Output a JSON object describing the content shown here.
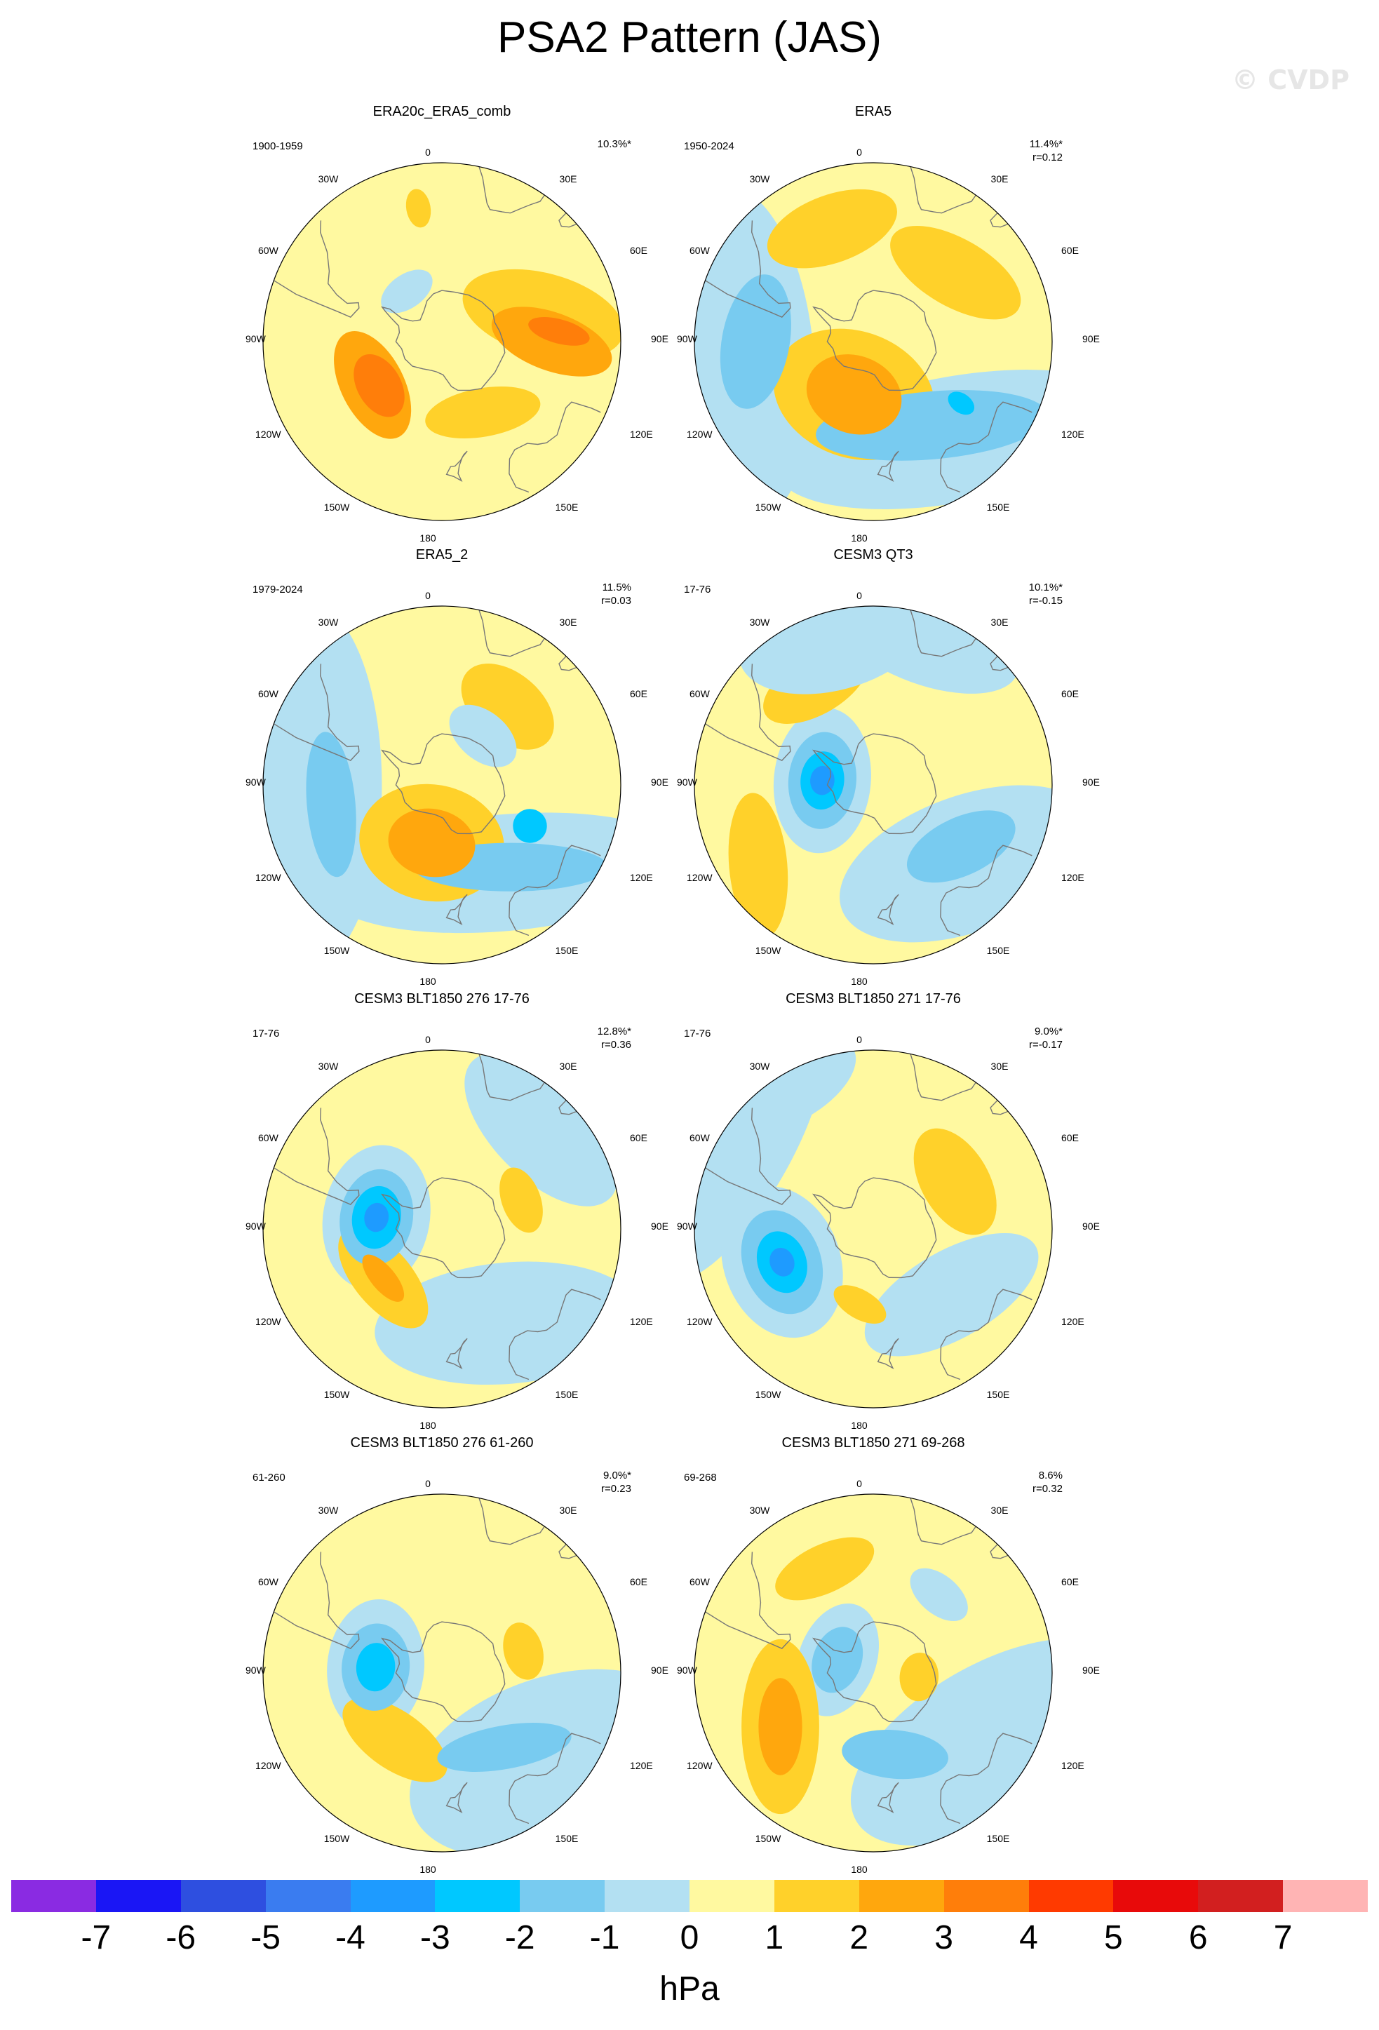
{
  "title": "PSA2 Pattern (JAS)",
  "watermark": "© CVDP",
  "colors": {
    "levels": [
      "#8a2be2",
      "#1a16f5",
      "#2e4fe0",
      "#3a7cf0",
      "#1e9bff",
      "#00c8ff",
      "#78cbf0",
      "#b3e0f2",
      "#fff9a0",
      "#ffd12a",
      "#ffa70d",
      "#ff7e0a",
      "#ff3a00",
      "#e80a0a",
      "#d21f1f",
      "#ffb4b4"
    ],
    "land_outline": "#777777"
  },
  "colorbar": {
    "ticks": [
      "-7",
      "-6",
      "-5",
      "-4",
      "-3",
      "-2",
      "-1",
      "0",
      "1",
      "2",
      "3",
      "4",
      "5",
      "6",
      "7"
    ],
    "units": "hPa"
  },
  "map_labels": {
    "top": "0",
    "bottom": "180",
    "left": "90W",
    "right": "90E",
    "ul1": "30W",
    "ul2": "60W",
    "ur1": "30E",
    "ur2": "60E",
    "ll1": "120W",
    "ll2": "150W",
    "lr1": "120E",
    "lr2": "150E"
  },
  "panels": [
    {
      "title": "ERA20c_ERA5_comb",
      "period": "1900-1959",
      "pct": "10.3%*",
      "r": "",
      "blobs": [
        {
          "lon": 75,
          "lat": -49,
          "rx": 34,
          "ry": 17,
          "rot": -60,
          "v": 1
        },
        {
          "lon": 90,
          "lat": -47,
          "rx": 26,
          "ry": 12,
          "rot": -70,
          "v": 2
        },
        {
          "lon": 85,
          "lat": -44,
          "rx": 13,
          "ry": 5,
          "rot": -70,
          "v": 3
        },
        {
          "lon": -122,
          "lat": -58,
          "rx": 24,
          "ry": 13,
          "rot": 5,
          "v": 2
        },
        {
          "lon": -125,
          "lat": -60,
          "rx": 14,
          "ry": 9,
          "rot": 5,
          "v": 3
        },
        {
          "lon": 150,
          "lat": -58,
          "rx": 24,
          "ry": 10,
          "rot": 20,
          "v": 1
        },
        {
          "lon": -10,
          "lat": -37,
          "rx": 5,
          "ry": 8,
          "rot": 0,
          "v": 1
        },
        {
          "lon": -35,
          "lat": -66,
          "rx": 12,
          "ry": 7,
          "rot": 0,
          "v": -1
        }
      ]
    },
    {
      "title": "ERA5",
      "period": "1950-2024",
      "pct": "11.4%*",
      "r": "r=0.12",
      "blobs": [
        {
          "lon": -95,
          "lat": -36,
          "rx": 70,
          "ry": 32,
          "rot": 0,
          "v": -1
        },
        {
          "lon": 140,
          "lat": -40,
          "rx": 75,
          "ry": 26,
          "rot": 30,
          "v": -1
        },
        {
          "lon": -90,
          "lat": -44,
          "rx": 28,
          "ry": 14,
          "rot": 10,
          "v": -2
        },
        {
          "lon": 145,
          "lat": -50,
          "rx": 48,
          "ry": 14,
          "rot": 30,
          "v": -2
        },
        {
          "lon": 125,
          "lat": -48,
          "rx": 4,
          "ry": 6,
          "rot": 0,
          "v": -3
        },
        {
          "lon": -160,
          "lat": -68,
          "rx": 34,
          "ry": 26,
          "rot": 0,
          "v": 1
        },
        {
          "lon": -160,
          "lat": -68,
          "rx": 20,
          "ry": 16,
          "rot": 0,
          "v": 2
        },
        {
          "lon": -20,
          "lat": -43,
          "rx": 28,
          "ry": 14,
          "rot": 0,
          "v": 1
        },
        {
          "lon": 50,
          "lat": -48,
          "rx": 30,
          "ry": 14,
          "rot": -20,
          "v": 1
        }
      ]
    },
    {
      "title": "ERA5_2",
      "period": "1979-2024",
      "pct": "11.5%",
      "r": "r=0.03",
      "blobs": [
        {
          "lon": -90,
          "lat": -38,
          "rx": 75,
          "ry": 30,
          "rot": 0,
          "v": -1
        },
        {
          "lon": 145,
          "lat": -48,
          "rx": 75,
          "ry": 24,
          "rot": 30,
          "v": -1
        },
        {
          "lon": -100,
          "lat": -46,
          "rx": 30,
          "ry": 10,
          "rot": 5,
          "v": -2
        },
        {
          "lon": 140,
          "lat": -48,
          "rx": 40,
          "ry": 10,
          "rot": 40,
          "v": -2
        },
        {
          "lon": 115,
          "lat": -52,
          "rx": 7,
          "ry": 7,
          "rot": 0,
          "v": -3
        },
        {
          "lon": -170,
          "lat": -67,
          "rx": 30,
          "ry": 24,
          "rot": 0,
          "v": 1
        },
        {
          "lon": -170,
          "lat": -67,
          "rx": 18,
          "ry": 14,
          "rot": 0,
          "v": 2
        },
        {
          "lon": 40,
          "lat": -50,
          "rx": 22,
          "ry": 14,
          "rot": 0,
          "v": 1
        },
        {
          "lon": 40,
          "lat": -65,
          "rx": 16,
          "ry": 10,
          "rot": 0,
          "v": -1
        }
      ]
    },
    {
      "title": "CESM3 QT3",
      "period": "17-76",
      "pct": "10.1%*",
      "r": "r=-0.15",
      "blobs": [
        {
          "lon": -85,
          "lat": -70,
          "rx": 30,
          "ry": 20,
          "rot": 0,
          "v": -1
        },
        {
          "lon": -85,
          "lat": -70,
          "rx": 20,
          "ry": 14,
          "rot": 0,
          "v": -2
        },
        {
          "lon": -85,
          "lat": -70,
          "rx": 12,
          "ry": 9,
          "rot": 0,
          "v": -3
        },
        {
          "lon": -85,
          "lat": -70,
          "rx": 6,
          "ry": 5,
          "rot": 0,
          "v": -4
        },
        {
          "lon": 130,
          "lat": -42,
          "rx": 55,
          "ry": 28,
          "rot": 30,
          "v": -1
        },
        {
          "lon": 125,
          "lat": -48,
          "rx": 24,
          "ry": 12,
          "rot": 30,
          "v": -2
        },
        {
          "lon": -125,
          "lat": -35,
          "rx": 30,
          "ry": 12,
          "rot": 30,
          "v": 1
        },
        {
          "lon": -30,
          "lat": -45,
          "rx": 24,
          "ry": 12,
          "rot": 0,
          "v": 1
        },
        {
          "lon": -15,
          "lat": -30,
          "rx": 40,
          "ry": 22,
          "rot": 0,
          "v": -1
        },
        {
          "lon": 20,
          "lat": -30,
          "rx": 40,
          "ry": 18,
          "rot": 0,
          "v": -1
        }
      ]
    },
    {
      "title": "CESM3 BLT1850 276 17-76",
      "period": "17-76",
      "pct": "12.8%*",
      "r": "r=0.36",
      "blobs": [
        {
          "lon": -80,
          "lat": -64,
          "rx": 30,
          "ry": 22,
          "rot": 0,
          "v": -1
        },
        {
          "lon": -80,
          "lat": -64,
          "rx": 20,
          "ry": 15,
          "rot": 0,
          "v": -2
        },
        {
          "lon": -80,
          "lat": -64,
          "rx": 13,
          "ry": 10,
          "rot": 0,
          "v": -3
        },
        {
          "lon": -80,
          "lat": -64,
          "rx": 6,
          "ry": 5,
          "rot": 0,
          "v": -4
        },
        {
          "lon": 145,
          "lat": -45,
          "rx": 55,
          "ry": 25,
          "rot": 30,
          "v": -1
        },
        {
          "lon": 45,
          "lat": -35,
          "rx": 40,
          "ry": 20,
          "rot": 0,
          "v": -1
        },
        {
          "lon": -130,
          "lat": -60,
          "rx": 25,
          "ry": 12,
          "rot": 0,
          "v": 1
        },
        {
          "lon": -130,
          "lat": -60,
          "rx": 12,
          "ry": 5,
          "rot": 0,
          "v": 2
        },
        {
          "lon": 70,
          "lat": -57,
          "rx": 14,
          "ry": 8,
          "rot": 0,
          "v": 1
        }
      ]
    },
    {
      "title": "CESM3 BLT1850 271 17-76",
      "period": "17-76",
      "pct": "9.0%*",
      "r": "r=-0.17",
      "blobs": [
        {
          "lon": -60,
          "lat": -30,
          "rx": 60,
          "ry": 20,
          "rot": 0,
          "v": -1
        },
        {
          "lon": -30,
          "lat": -25,
          "rx": 30,
          "ry": 15,
          "rot": 0,
          "v": -1
        },
        {
          "lon": -110,
          "lat": -52,
          "rx": 32,
          "ry": 24,
          "rot": 0,
          "v": -1
        },
        {
          "lon": -110,
          "lat": -52,
          "rx": 22,
          "ry": 16,
          "rot": 0,
          "v": -2
        },
        {
          "lon": -110,
          "lat": -52,
          "rx": 13,
          "ry": 10,
          "rot": 0,
          "v": -3
        },
        {
          "lon": -110,
          "lat": -52,
          "rx": 6,
          "ry": 5,
          "rot": 0,
          "v": -4
        },
        {
          "lon": 60,
          "lat": -53,
          "rx": 24,
          "ry": 14,
          "rot": 0,
          "v": 1
        },
        {
          "lon": 130,
          "lat": -50,
          "rx": 40,
          "ry": 18,
          "rot": 20,
          "v": -1
        },
        {
          "lon": -170,
          "lat": -60,
          "rx": 12,
          "ry": 6,
          "rot": 20,
          "v": 1
        }
      ]
    },
    {
      "title": "CESM3 BLT1850 276 61-260",
      "period": "61-260",
      "pct": "9.0%*",
      "r": "r=0.23",
      "blobs": [
        {
          "lon": -85,
          "lat": -64,
          "rx": 28,
          "ry": 20,
          "rot": 0,
          "v": -1
        },
        {
          "lon": -85,
          "lat": -64,
          "rx": 18,
          "ry": 14,
          "rot": 0,
          "v": -2
        },
        {
          "lon": -85,
          "lat": -64,
          "rx": 10,
          "ry": 8,
          "rot": 0,
          "v": -3
        },
        {
          "lon": 130,
          "lat": -35,
          "rx": 60,
          "ry": 35,
          "rot": 30,
          "v": -1
        },
        {
          "lon": 140,
          "lat": -52,
          "rx": 28,
          "ry": 9,
          "rot": 30,
          "v": -2
        },
        {
          "lon": -145,
          "lat": -58,
          "rx": 25,
          "ry": 12,
          "rot": 0,
          "v": 1
        },
        {
          "lon": 75,
          "lat": -57,
          "rx": 12,
          "ry": 8,
          "rot": 0,
          "v": 1
        }
      ]
    },
    {
      "title": "CESM3 BLT1850 271 69-268",
      "period": "69-268",
      "pct": "8.6%",
      "r": "r=0.32",
      "blobs": [
        {
          "lon": -70,
          "lat": -75,
          "rx": 24,
          "ry": 16,
          "rot": 0,
          "v": -1
        },
        {
          "lon": -70,
          "lat": -75,
          "rx": 14,
          "ry": 10,
          "rot": 0,
          "v": -2
        },
        {
          "lon": 120,
          "lat": -36,
          "rx": 65,
          "ry": 32,
          "rot": 30,
          "v": -1
        },
        {
          "lon": 165,
          "lat": -57,
          "rx": 22,
          "ry": 10,
          "rot": 20,
          "v": -2
        },
        {
          "lon": -120,
          "lat": -48,
          "rx": 36,
          "ry": 16,
          "rot": 30,
          "v": 1
        },
        {
          "lon": -120,
          "lat": -48,
          "rx": 20,
          "ry": 9,
          "rot": 30,
          "v": 2
        },
        {
          "lon": -25,
          "lat": -45,
          "rx": 22,
          "ry": 10,
          "rot": 0,
          "v": 1
        },
        {
          "lon": 40,
          "lat": -50,
          "rx": 14,
          "ry": 8,
          "rot": 0,
          "v": -1
        },
        {
          "lon": 95,
          "lat": -72,
          "rx": 10,
          "ry": 8,
          "rot": 0,
          "v": 1
        }
      ]
    }
  ]
}
